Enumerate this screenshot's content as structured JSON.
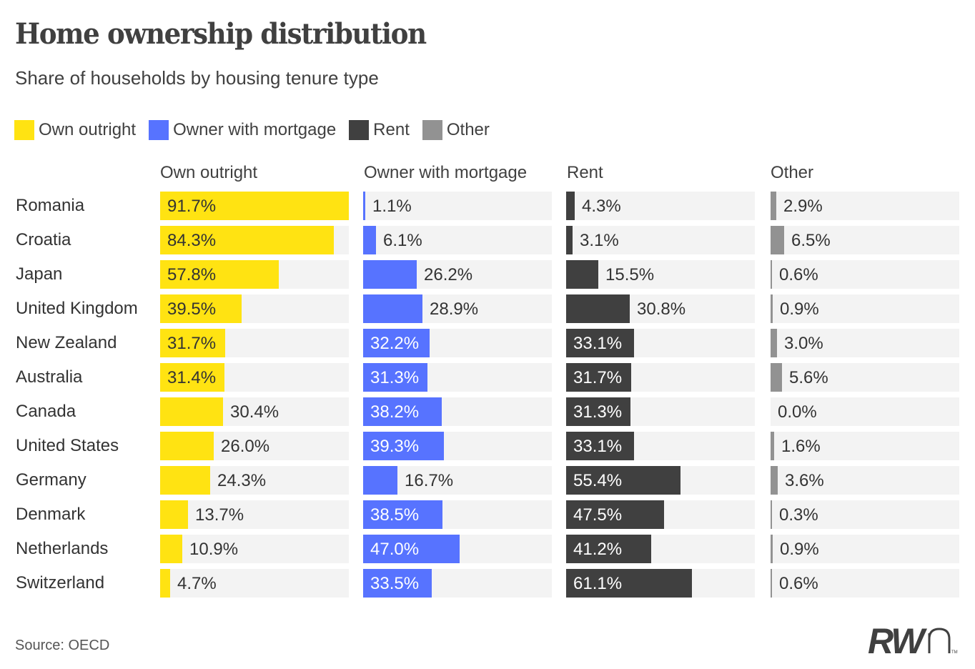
{
  "title": "Home ownership distribution",
  "subtitle": "Share of households by housing tenure type",
  "source": "Source: OECD",
  "logo": {
    "text_bold": "RW",
    "text_light": "n",
    "mark": "TM"
  },
  "colors": {
    "own_outright": "#ffe312",
    "mortgage": "#5773ff",
    "rent": "#404040",
    "other": "#929292",
    "track": "#f3f3f3",
    "label_dark": "#333333",
    "label_on_yellow": "#333333",
    "label_light": "#ffffff"
  },
  "legend": [
    {
      "label": "Own outright",
      "color": "#ffe312"
    },
    {
      "label": "Owner with mortgage",
      "color": "#5773ff"
    },
    {
      "label": "Rent",
      "color": "#404040"
    },
    {
      "label": "Other",
      "color": "#929292"
    }
  ],
  "chart_data": {
    "type": "bar",
    "orientation": "horizontal",
    "layout": "small-multiples",
    "title": "Home ownership distribution",
    "subtitle": "Share of households by housing tenure type",
    "unit": "%",
    "xlim": [
      0,
      100
    ],
    "grid": false,
    "legend_position": "top-left",
    "categories": [
      "Romania",
      "Croatia",
      "Japan",
      "United Kingdom",
      "New Zealand",
      "Australia",
      "Canada",
      "United States",
      "Germany",
      "Denmark",
      "Netherlands",
      "Switzerland"
    ],
    "series": [
      {
        "name": "Own outright",
        "values": [
          91.7,
          84.3,
          57.8,
          39.5,
          31.7,
          31.4,
          30.4,
          26.0,
          24.3,
          13.7,
          10.9,
          4.7
        ]
      },
      {
        "name": "Owner with mortgage",
        "values": [
          1.1,
          6.1,
          26.2,
          28.9,
          32.2,
          31.3,
          38.2,
          39.3,
          16.7,
          38.5,
          47.0,
          33.5
        ]
      },
      {
        "name": "Rent",
        "values": [
          4.3,
          3.1,
          15.5,
          30.8,
          33.1,
          31.7,
          31.3,
          33.1,
          55.4,
          47.5,
          41.2,
          61.1
        ]
      },
      {
        "name": "Other",
        "values": [
          2.9,
          6.5,
          0.6,
          0.9,
          3.0,
          5.6,
          0.0,
          1.6,
          3.6,
          0.3,
          0.9,
          0.6
        ]
      }
    ],
    "value_labels": [
      [
        "91.7%",
        "84.3%",
        "57.8%",
        "39.5%",
        "31.7%",
        "31.4%",
        "30.4%",
        "26.0%",
        "24.3%",
        "13.7%",
        "10.9%",
        "4.7%"
      ],
      [
        "1.1%",
        "6.1%",
        "26.2%",
        "28.9%",
        "32.2%",
        "31.3%",
        "38.2%",
        "39.3%",
        "16.7%",
        "38.5%",
        "47.0%",
        "33.5%"
      ],
      [
        "4.3%",
        "3.1%",
        "15.5%",
        "30.8%",
        "33.1%",
        "31.7%",
        "31.3%",
        "33.1%",
        "55.4%",
        "47.5%",
        "41.2%",
        "61.1%"
      ],
      [
        "2.9%",
        "6.5%",
        "0.6%",
        "0.9%",
        "3.0%",
        "5.6%",
        "0.0%",
        "1.6%",
        "3.6%",
        "0.3%",
        "0.9%",
        "0.6%"
      ]
    ],
    "source": "Source: OECD"
  }
}
